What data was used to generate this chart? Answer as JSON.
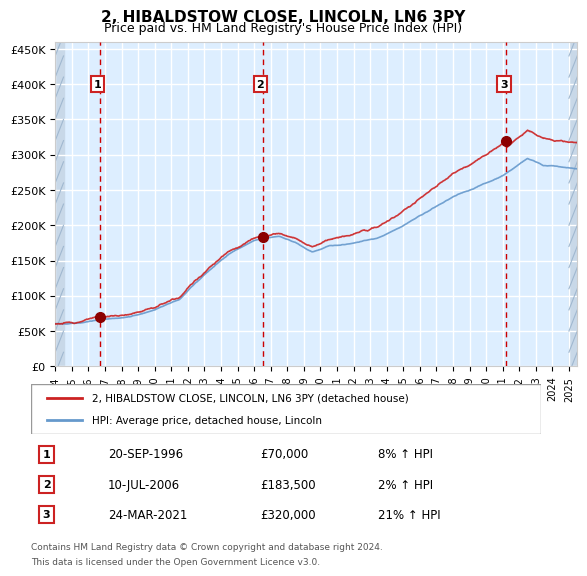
{
  "title": "2, HIBALDSTOW CLOSE, LINCOLN, LN6 3PY",
  "subtitle": "Price paid vs. HM Land Registry's House Price Index (HPI)",
  "legend_line1": "2, HIBALDSTOW CLOSE, LINCOLN, LN6 3PY (detached house)",
  "legend_line2": "HPI: Average price, detached house, Lincoln",
  "footer1": "Contains HM Land Registry data © Crown copyright and database right 2024.",
  "footer2": "This data is licensed under the Open Government Licence v3.0.",
  "transactions": [
    {
      "label": "1",
      "date": "20-SEP-1996",
      "price": 70000,
      "hpi_pct": "8% ↑ HPI",
      "x_year": 1996.72
    },
    {
      "label": "2",
      "date": "10-JUL-2006",
      "price": 183500,
      "hpi_pct": "2% ↑ HPI",
      "x_year": 2006.52
    },
    {
      "label": "3",
      "date": "24-MAR-2021",
      "price": 320000,
      "hpi_pct": "21% ↑ HPI",
      "x_year": 2021.23
    }
  ],
  "xlim": [
    1994.0,
    2025.5
  ],
  "ylim": [
    0,
    460000
  ],
  "yticks": [
    0,
    50000,
    100000,
    150000,
    200000,
    250000,
    300000,
    350000,
    400000,
    450000
  ],
  "ytick_labels": [
    "£0",
    "£50K",
    "£100K",
    "£150K",
    "£200K",
    "£250K",
    "£300K",
    "£350K",
    "£400K",
    "£450K"
  ],
  "xticks": [
    1994,
    1995,
    1996,
    1997,
    1998,
    1999,
    2000,
    2001,
    2002,
    2003,
    2004,
    2005,
    2006,
    2007,
    2008,
    2009,
    2010,
    2011,
    2012,
    2013,
    2014,
    2015,
    2016,
    2017,
    2018,
    2019,
    2020,
    2021,
    2022,
    2023,
    2024,
    2025
  ],
  "hpi_line_color": "#6699cc",
  "price_line_color": "#cc2222",
  "marker_color": "#8b0000",
  "vline_color": "#cc0000",
  "bg_color": "#ddeeff",
  "hatch_color": "#b0c4de",
  "grid_color": "#ffffff",
  "box_border_color": "#cc0000"
}
